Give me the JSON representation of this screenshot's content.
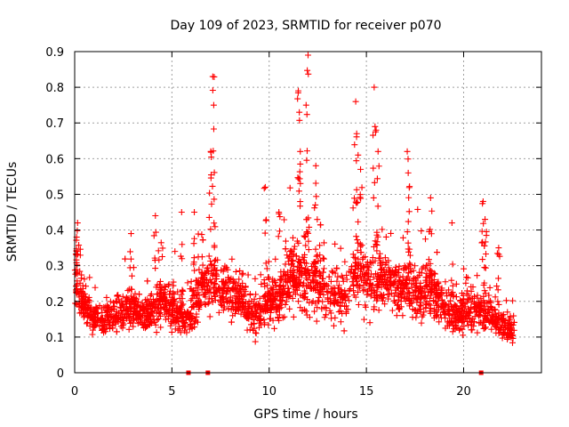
{
  "chart_data": {
    "type": "scatter",
    "title": "Day 109 of 2023, SRMTID for receiver p070",
    "xlabel": "GPS time / hours",
    "ylabel": "SRMTID / TECUs",
    "xlim": [
      0,
      24
    ],
    "ylim": [
      0,
      0.9
    ],
    "xticks": [
      0,
      5,
      10,
      15,
      20
    ],
    "xtick_labels": [
      "0",
      "5",
      "10",
      "15",
      "20"
    ],
    "yticks": [
      0,
      0.1,
      0.2,
      0.3,
      0.4,
      0.5,
      0.6,
      0.7,
      0.8,
      0.9
    ],
    "ytick_labels": [
      "0",
      "0.1",
      "0.2",
      "0.3",
      "0.4",
      "0.5",
      "0.6",
      "0.7",
      "0.8",
      "0.9"
    ],
    "grid": true,
    "marker": "plus",
    "color": "#ff0000",
    "peaks": [
      {
        "x": 0.15,
        "y": 0.42
      },
      {
        "x": 0.1,
        "y": 0.38
      },
      {
        "x": 2.9,
        "y": 0.39
      },
      {
        "x": 4.15,
        "y": 0.44
      },
      {
        "x": 5.5,
        "y": 0.45
      },
      {
        "x": 6.15,
        "y": 0.45
      },
      {
        "x": 7.1,
        "y": 0.83
      },
      {
        "x": 7.15,
        "y": 0.75
      },
      {
        "x": 7.0,
        "y": 0.62
      },
      {
        "x": 9.8,
        "y": 0.52
      },
      {
        "x": 10.5,
        "y": 0.45
      },
      {
        "x": 11.5,
        "y": 0.79
      },
      {
        "x": 11.55,
        "y": 0.73
      },
      {
        "x": 12.0,
        "y": 0.89
      },
      {
        "x": 11.9,
        "y": 0.75
      },
      {
        "x": 12.4,
        "y": 0.58
      },
      {
        "x": 11.6,
        "y": 0.62
      },
      {
        "x": 14.45,
        "y": 0.76
      },
      {
        "x": 14.5,
        "y": 0.67
      },
      {
        "x": 14.7,
        "y": 0.57
      },
      {
        "x": 15.4,
        "y": 0.8
      },
      {
        "x": 15.5,
        "y": 0.68
      },
      {
        "x": 15.6,
        "y": 0.62
      },
      {
        "x": 17.1,
        "y": 0.62
      },
      {
        "x": 17.15,
        "y": 0.56
      },
      {
        "x": 18.3,
        "y": 0.49
      },
      {
        "x": 19.4,
        "y": 0.42
      },
      {
        "x": 21.0,
        "y": 0.48
      },
      {
        "x": 21.1,
        "y": 0.43
      },
      {
        "x": 21.8,
        "y": 0.35
      }
    ],
    "envelope": {
      "hours": [
        0,
        0.5,
        1,
        1.5,
        2,
        2.5,
        3,
        3.5,
        4,
        4.5,
        5,
        5.5,
        6,
        6.5,
        7,
        7.5,
        8,
        8.5,
        9,
        9.5,
        10,
        10.5,
        11,
        11.5,
        12,
        12.5,
        13,
        13.5,
        14,
        14.5,
        15,
        15.5,
        16,
        16.5,
        17,
        17.5,
        18,
        18.5,
        19,
        19.5,
        20,
        20.5,
        21,
        21.5,
        22,
        22.5
      ],
      "median": [
        0.26,
        0.19,
        0.15,
        0.15,
        0.16,
        0.17,
        0.18,
        0.17,
        0.17,
        0.2,
        0.18,
        0.16,
        0.17,
        0.24,
        0.27,
        0.22,
        0.23,
        0.22,
        0.16,
        0.17,
        0.2,
        0.21,
        0.26,
        0.28,
        0.26,
        0.25,
        0.22,
        0.21,
        0.22,
        0.3,
        0.27,
        0.24,
        0.26,
        0.25,
        0.24,
        0.22,
        0.24,
        0.22,
        0.18,
        0.16,
        0.17,
        0.16,
        0.18,
        0.15,
        0.13,
        0.12
      ],
      "spread": [
        0.08,
        0.06,
        0.05,
        0.05,
        0.06,
        0.07,
        0.07,
        0.06,
        0.06,
        0.08,
        0.07,
        0.07,
        0.08,
        0.1,
        0.12,
        0.08,
        0.08,
        0.08,
        0.06,
        0.07,
        0.08,
        0.09,
        0.12,
        0.14,
        0.13,
        0.11,
        0.09,
        0.08,
        0.09,
        0.13,
        0.12,
        0.1,
        0.1,
        0.1,
        0.1,
        0.09,
        0.1,
        0.09,
        0.07,
        0.06,
        0.07,
        0.07,
        0.08,
        0.06,
        0.05,
        0.04
      ]
    },
    "data_start_hour": 0,
    "data_end_hour": 22.6,
    "zero_flags": [
      {
        "x": 5.85,
        "y": 0
      },
      {
        "x": 6.85,
        "y": 0
      },
      {
        "x": 20.9,
        "y": 0
      }
    ]
  }
}
